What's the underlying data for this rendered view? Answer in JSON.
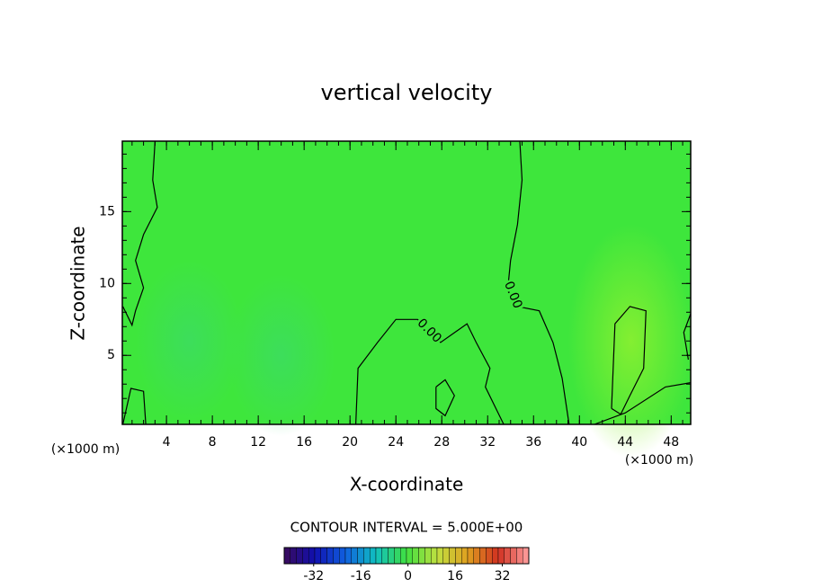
{
  "chart_data": {
    "type": "contour",
    "title": "vertical velocity",
    "xlabel": "X-coordinate",
    "ylabel": "Z-coordinate",
    "xunit_left": "(×1000 m)",
    "xunit_right": "(×1000 m)",
    "xlim": [
      0.15,
      49.7
    ],
    "xticks": [
      4,
      8,
      12,
      16,
      20,
      24,
      28,
      32,
      36,
      40,
      44,
      48
    ],
    "ylim": [
      0.2,
      19.9
    ],
    "yticks": [
      5,
      10,
      15
    ],
    "field_color": "#3ee63c",
    "line_color": "#000000",
    "contours": [
      {
        "level": 0,
        "x": [
          3.0,
          2.8,
          3.2,
          2.0,
          1.3,
          2.0,
          1.3,
          1.0,
          0.2
        ],
        "y": [
          19.9,
          17.2,
          15.3,
          13.4,
          11.6,
          9.7,
          8.1,
          7.1,
          8.4
        ]
      },
      {
        "level": 0,
        "label": "0.00",
        "x": [
          34.8,
          35.0,
          34.6,
          34.0,
          33.8,
          34.6,
          36.5,
          37.7,
          38.5,
          39.1
        ],
        "y": [
          19.9,
          17.2,
          14.1,
          11.6,
          10.0,
          8.4,
          8.1,
          5.9,
          3.4,
          0.2
        ]
      },
      {
        "level": 0,
        "label": "0.00",
        "x": [
          20.5,
          20.7,
          22.4,
          24.0,
          25.9,
          27.9,
          30.2,
          31.0,
          32.2,
          31.8,
          33.4
        ],
        "y": [
          0.2,
          4.1,
          5.9,
          7.5,
          7.5,
          5.9,
          7.2,
          5.9,
          4.1,
          2.8,
          0.2
        ]
      },
      {
        "level": 0,
        "x": [
          42.8,
          43.1,
          44.4,
          45.8,
          45.6,
          44.4,
          43.6,
          42.8
        ],
        "y": [
          1.3,
          7.2,
          8.4,
          8.1,
          4.1,
          2.2,
          0.9,
          1.3
        ]
      },
      {
        "level": 0,
        "x": [
          27.5,
          28.3,
          29.1,
          28.3,
          27.5,
          27.5
        ],
        "y": [
          2.8,
          3.3,
          2.2,
          0.8,
          1.3,
          2.8
        ]
      },
      {
        "level": 0,
        "x": [
          0.2,
          0.9,
          2.0,
          2.2
        ],
        "y": [
          0.2,
          2.7,
          2.5,
          0.2
        ]
      },
      {
        "level": 0,
        "x": [
          41.3,
          44.0,
          47.5,
          49.7
        ],
        "y": [
          0.2,
          1.0,
          2.8,
          3.1
        ]
      },
      {
        "level": 0,
        "x": [
          49.7,
          49.1,
          49.5
        ],
        "y": [
          7.9,
          6.6,
          4.7
        ]
      }
    ],
    "contour_interval": "CONTOUR INTERVAL = 5.000E+00",
    "colorbar": {
      "lim": [
        -42,
        41
      ],
      "ticks": [
        -32,
        -16,
        0,
        16,
        32
      ],
      "colormap": [
        "#3a0a5a",
        "#1010b0",
        "#1060e0",
        "#10c0c0",
        "#40e040",
        "#c0e040",
        "#e0a020",
        "#d03020",
        "#ffa0a0"
      ]
    }
  }
}
